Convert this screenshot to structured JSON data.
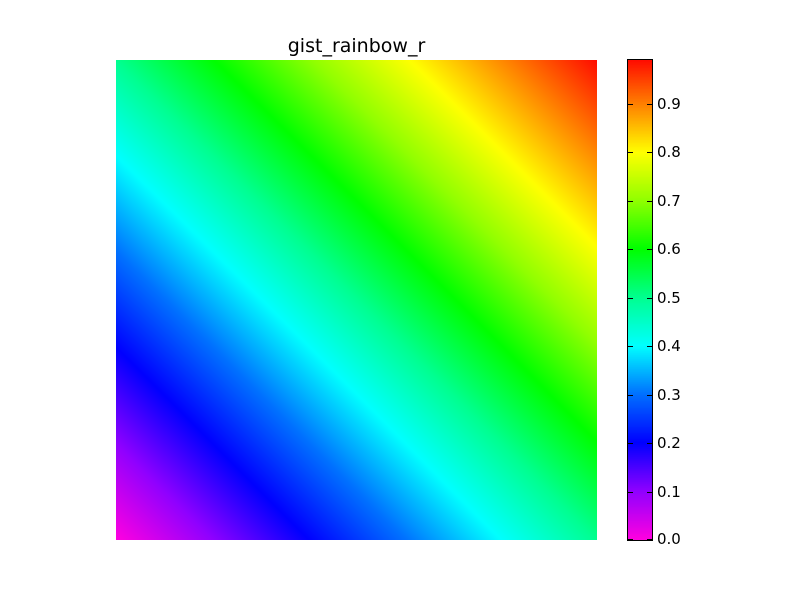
{
  "chart_data": {
    "type": "heatmap",
    "title": "gist_rainbow_r",
    "colormap": "gist_rainbow_r",
    "grid": false,
    "axes_visible": false,
    "value_field": "diagonal gradient rising from 0.0 at bottom-left to about 0.99 at top-right",
    "value_range": [
      0.0,
      0.99
    ],
    "corner_values": {
      "bottom_left": 0.0,
      "top_left": 0.5,
      "bottom_right": 0.5,
      "top_right": 0.99
    },
    "colorbar": {
      "location": "right",
      "ticks": [
        "0.0",
        "0.1",
        "0.2",
        "0.3",
        "0.4",
        "0.5",
        "0.6",
        "0.7",
        "0.8",
        "0.9"
      ],
      "tick_values": [
        0.0,
        0.1,
        0.2,
        0.3,
        0.4,
        0.5,
        0.6,
        0.7,
        0.8,
        0.9
      ],
      "range": [
        0.0,
        0.99
      ]
    },
    "colorbar_stops": [
      {
        "value": 0.0,
        "color": "#ff00e0"
      },
      {
        "value": 0.1,
        "color": "#9000ff"
      },
      {
        "value": 0.2,
        "color": "#0000ff"
      },
      {
        "value": 0.3,
        "color": "#0070ff"
      },
      {
        "value": 0.4,
        "color": "#00ffff"
      },
      {
        "value": 0.5,
        "color": "#00ff90"
      },
      {
        "value": 0.6,
        "color": "#00ff00"
      },
      {
        "value": 0.7,
        "color": "#90ff00"
      },
      {
        "value": 0.8,
        "color": "#ffff00"
      },
      {
        "value": 0.9,
        "color": "#ff8000"
      },
      {
        "value": 1.0,
        "color": "#ff0000"
      }
    ]
  }
}
